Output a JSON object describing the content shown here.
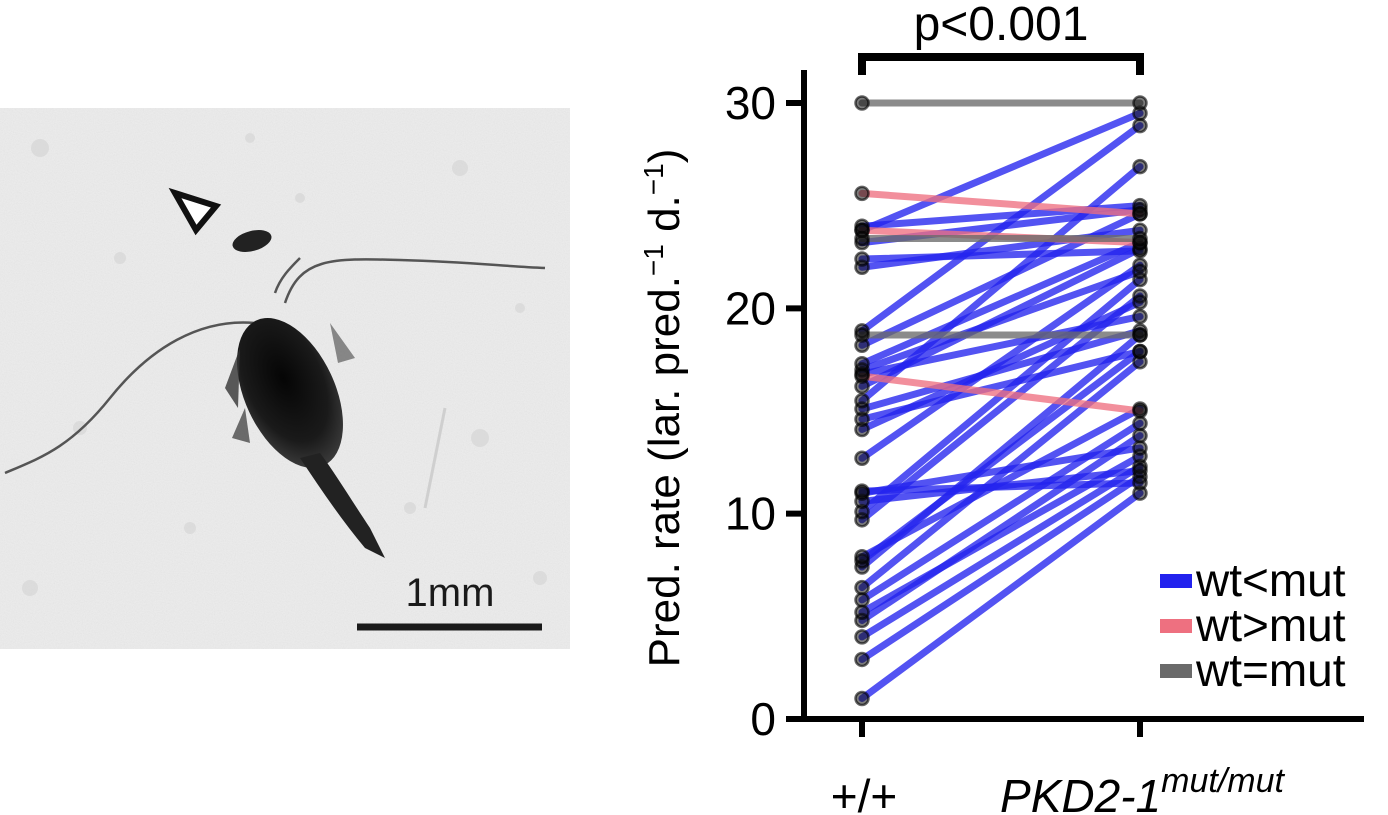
{
  "photo": {
    "scale_bar_label": "1mm",
    "marker": "open-triangle-arrowhead"
  },
  "chart_data": {
    "type": "line",
    "subtype": "paired-dot-plot",
    "categories": [
      "+/+",
      "PKD2-1"
    ],
    "category_superscript": "mut/mut",
    "ylabel": "Pred. rate (lar. pred.",
    "ylabel_sup1": "−1",
    "ylabel_mid": " d.",
    "ylabel_sup2": "−1",
    "ylabel_end": ")",
    "ylim": [
      0,
      30
    ],
    "yticks": [
      0,
      10,
      20,
      30
    ],
    "grid": false,
    "significance": "p<0.001",
    "legend_position": "right",
    "legend": [
      {
        "label": "wt<mut",
        "group": "increase",
        "color": "#2222ee"
      },
      {
        "label": "wt>mut",
        "group": "decrease",
        "color": "#ee7080"
      },
      {
        "label": "wt=mut",
        "group": "equal",
        "color": "#6a6a6a"
      }
    ],
    "pairs": [
      {
        "wt": 1,
        "mut": 11,
        "group": "increase"
      },
      {
        "wt": 2.9,
        "mut": 11.8,
        "group": "increase"
      },
      {
        "wt": 4,
        "mut": 12.3,
        "group": "increase"
      },
      {
        "wt": 4.8,
        "mut": 13.8,
        "group": "increase"
      },
      {
        "wt": 5.2,
        "mut": 12.8,
        "group": "increase"
      },
      {
        "wt": 5.8,
        "mut": 14.4,
        "group": "increase"
      },
      {
        "wt": 6.4,
        "mut": 17.4,
        "group": "increase"
      },
      {
        "wt": 7.4,
        "mut": 18.7,
        "group": "increase"
      },
      {
        "wt": 7.7,
        "mut": 17.9,
        "group": "increase"
      },
      {
        "wt": 7.9,
        "mut": 15.1,
        "group": "increase"
      },
      {
        "wt": 9.7,
        "mut": 20.6,
        "group": "increase"
      },
      {
        "wt": 10.1,
        "mut": 21.4,
        "group": "increase"
      },
      {
        "wt": 10.6,
        "mut": 12.1,
        "group": "increase"
      },
      {
        "wt": 11,
        "mut": 13.2,
        "group": "increase"
      },
      {
        "wt": 11.1,
        "mut": 11.5,
        "group": "increase"
      },
      {
        "wt": 12.7,
        "mut": 22.1,
        "group": "increase"
      },
      {
        "wt": 14.1,
        "mut": 20.3,
        "group": "increase"
      },
      {
        "wt": 14.6,
        "mut": 17.9,
        "group": "increase"
      },
      {
        "wt": 15.1,
        "mut": 18.9,
        "group": "increase"
      },
      {
        "wt": 15.5,
        "mut": 26.9,
        "group": "increase"
      },
      {
        "wt": 16.2,
        "mut": 22.9,
        "group": "increase"
      },
      {
        "wt": 16.8,
        "mut": 19.6,
        "group": "increase"
      },
      {
        "wt": 17,
        "mut": 21.8,
        "group": "increase"
      },
      {
        "wt": 17.3,
        "mut": 23.2,
        "group": "increase"
      },
      {
        "wt": 18.2,
        "mut": 24.6,
        "group": "increase"
      },
      {
        "wt": 18.9,
        "mut": 28.9,
        "group": "increase"
      },
      {
        "wt": 22,
        "mut": 23.8,
        "group": "increase"
      },
      {
        "wt": 22.4,
        "mut": 22.8,
        "group": "increase"
      },
      {
        "wt": 23.2,
        "mut": 24.8,
        "group": "increase"
      },
      {
        "wt": 23.8,
        "mut": 29.5,
        "group": "increase"
      },
      {
        "wt": 24,
        "mut": 25,
        "group": "increase"
      },
      {
        "wt": 25.6,
        "mut": 24.6,
        "group": "decrease"
      },
      {
        "wt": 23.8,
        "mut": 23.2,
        "group": "decrease"
      },
      {
        "wt": 16.7,
        "mut": 15,
        "group": "decrease"
      },
      {
        "wt": 30,
        "mut": 30,
        "group": "equal"
      },
      {
        "wt": 23.4,
        "mut": 23.4,
        "group": "equal"
      },
      {
        "wt": 18.7,
        "mut": 18.7,
        "group": "equal"
      }
    ]
  }
}
